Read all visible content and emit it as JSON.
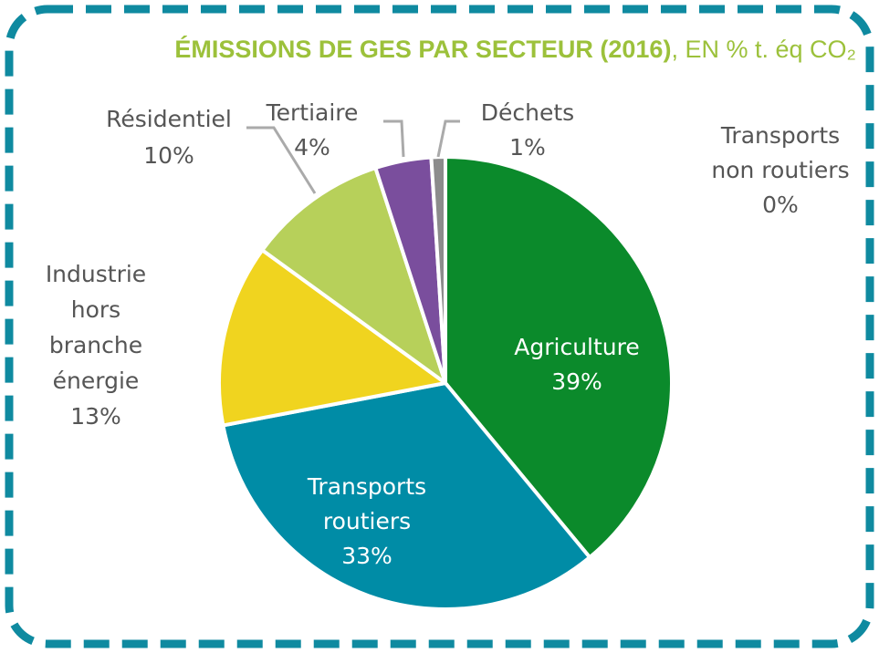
{
  "chart_data": {
    "type": "pie",
    "title": "ÉMISSIONS DE GES PAR SECTEUR (2016)",
    "subtitle": ", EN % t. éq CO₂",
    "categories": [
      [
        "Agriculture"
      ],
      [
        "Transports",
        "routiers"
      ],
      [
        "Industrie",
        "hors",
        "branche",
        "énergie"
      ],
      [
        "Résidentiel"
      ],
      [
        "Tertiaire"
      ],
      [
        "Déchets"
      ],
      [
        "Transports",
        "non routiers"
      ]
    ],
    "values": [
      39,
      33,
      13,
      10,
      4,
      1,
      0
    ],
    "value_labels": [
      "39%",
      "33%",
      "13%",
      "10%",
      "4%",
      "1%",
      "0%"
    ],
    "colors": [
      "#0b8a2b",
      "#008ca6",
      "#f0d41f",
      "#b7d05a",
      "#7a4e9d",
      "#8c8c8c",
      "#2e6db4"
    ]
  }
}
